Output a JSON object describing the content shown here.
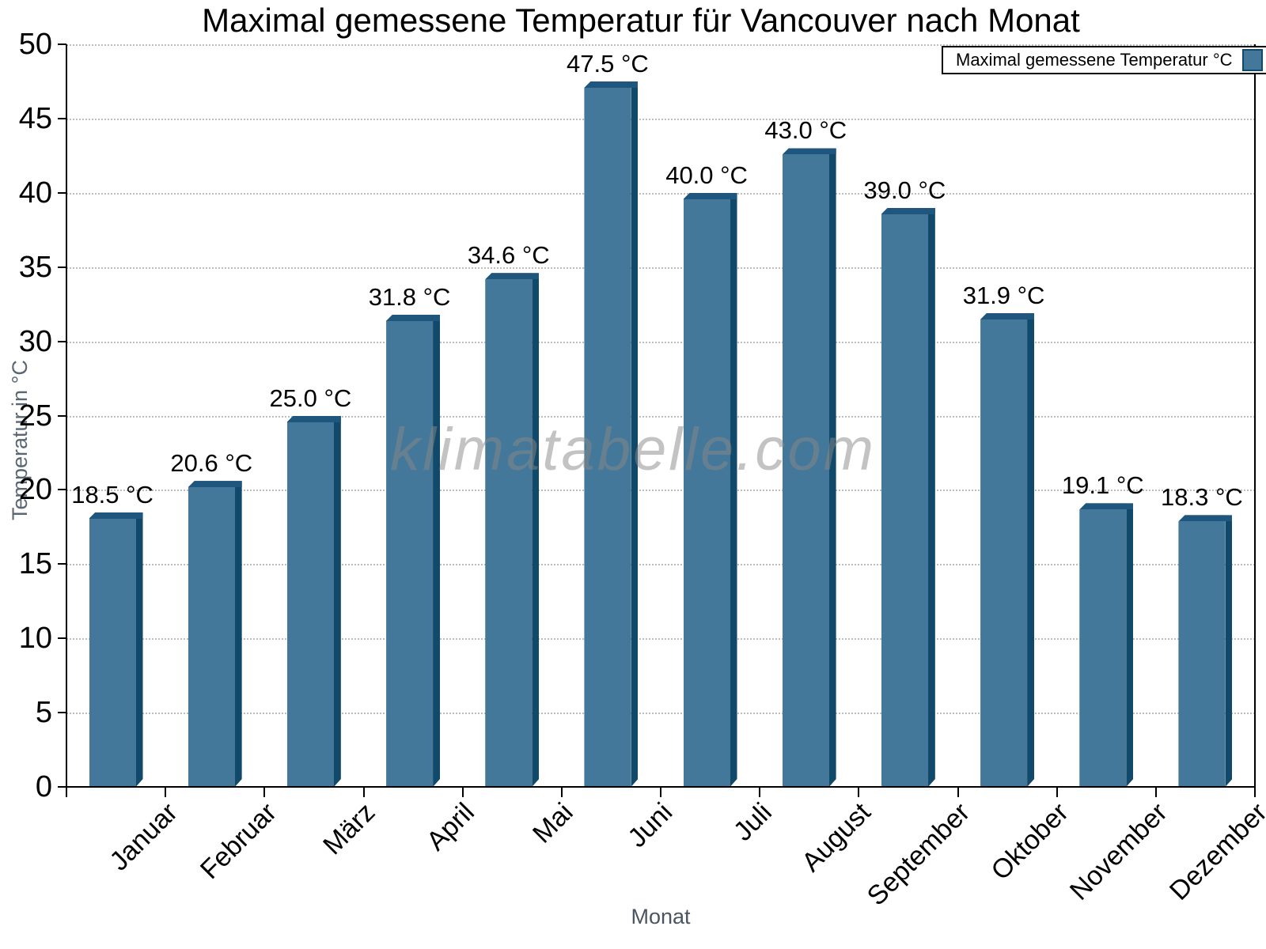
{
  "title": "Maximal gemessene Temperatur für Vancouver nach Monat",
  "watermark": "klimatabelle.com",
  "legend": {
    "label": "Maximal gemessene Temperatur °C"
  },
  "axes": {
    "y_title": "Temperatur in °C",
    "x_title": "Monat"
  },
  "chart_data": {
    "type": "bar",
    "title": "Maximal gemessene Temperatur für Vancouver nach Monat",
    "categories": [
      "Januar",
      "Februar",
      "März",
      "April",
      "Mai",
      "Juni",
      "Juli",
      "August",
      "September",
      "Oktober",
      "November",
      "Dezember"
    ],
    "values": [
      18.5,
      20.6,
      25.0,
      31.8,
      34.6,
      47.5,
      40.0,
      43.0,
      39.0,
      31.9,
      19.1,
      18.3
    ],
    "value_labels": [
      "18.5 °C",
      "20.6 °C",
      "25.0 °C",
      "31.8 °C",
      "34.6 °C",
      "47.5 °C",
      "40.0 °C",
      "43.0 °C",
      "39.0 °C",
      "31.9 °C",
      "19.1 °C",
      "18.3 °C"
    ],
    "xlabel": "Monat",
    "ylabel": "Temperatur in °C",
    "ylim": [
      0,
      50
    ],
    "yticks": [
      0,
      5,
      10,
      15,
      20,
      25,
      30,
      35,
      40,
      45,
      50
    ],
    "grid": "horizontal-dotted",
    "legend_entry": "Maximal gemessene Temperatur °C",
    "legend_position": "top-right",
    "colors": {
      "bar_face": "#44789A",
      "bar_edge": "#11496A",
      "bar_top": "#1E567D",
      "grid": "#bcbcbc",
      "axis": "#000000",
      "axis_title": "#5a6672",
      "watermark": "#888888"
    }
  }
}
